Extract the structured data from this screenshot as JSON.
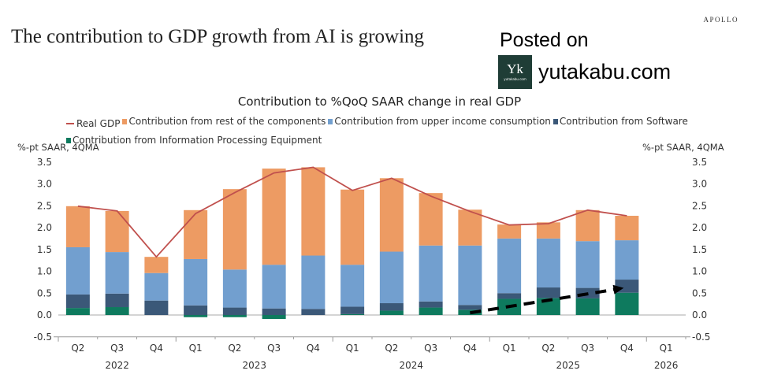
{
  "brand": "APOLLO",
  "headline": "The contribution to GDP growth from AI is growing",
  "watermark": {
    "posted_label": "Posted on",
    "site": "yutakabu.com",
    "logo_mark": "Yk",
    "logo_small": "yutakabu.com",
    "logo_bg": "#1f3d36"
  },
  "chart_data": {
    "type": "bar",
    "stacked": true,
    "title": "Contribution to %QoQ SAAR change in real GDP",
    "ylabel_left": "%-pt SAAR, 4QMA",
    "ylabel_right": "%-pt SAAR, 4QMA",
    "ylim": [
      -0.5,
      3.5
    ],
    "yticks": [
      "3.5",
      "3.0",
      "2.5",
      "2.0",
      "1.5",
      "1.0",
      "0.5",
      "0.0",
      "-0.5"
    ],
    "ytick_values": [
      3.5,
      3.0,
      2.5,
      2.0,
      1.5,
      1.0,
      0.5,
      0.0,
      -0.5
    ],
    "categories": [
      "Q2",
      "Q3",
      "Q4",
      "Q1",
      "Q2",
      "Q3",
      "Q4",
      "Q1",
      "Q2",
      "Q3",
      "Q4",
      "Q1",
      "Q2",
      "Q3",
      "Q4",
      "Q1"
    ],
    "years": [
      {
        "label": "2022",
        "start": 0,
        "end": 2
      },
      {
        "label": "2023",
        "start": 3,
        "end": 6
      },
      {
        "label": "2024",
        "start": 7,
        "end": 10
      },
      {
        "label": "2025",
        "start": 11,
        "end": 14
      },
      {
        "label": "2026",
        "start": 15,
        "end": 15
      }
    ],
    "legend_position": "top",
    "grid": false,
    "series": [
      {
        "name": "Contribution from Information Processing Equipment",
        "kind": "bar",
        "color": "#0e7a5e",
        "values": [
          0.16,
          0.18,
          0.0,
          -0.05,
          -0.05,
          -0.09,
          0.0,
          0.02,
          0.1,
          0.17,
          0.12,
          0.37,
          0.39,
          0.38,
          0.51,
          null
        ]
      },
      {
        "name": "Contribution from Software",
        "kind": "bar",
        "color": "#3b5878",
        "values": [
          0.31,
          0.31,
          0.33,
          0.22,
          0.17,
          0.15,
          0.14,
          0.17,
          0.17,
          0.14,
          0.11,
          0.13,
          0.24,
          0.24,
          0.3,
          null
        ]
      },
      {
        "name": "Contribution from upper income consumption",
        "kind": "bar",
        "color": "#729fcf",
        "values": [
          1.08,
          0.95,
          0.63,
          1.06,
          0.87,
          1.0,
          1.22,
          0.96,
          1.18,
          1.28,
          1.36,
          1.25,
          1.12,
          1.07,
          0.9,
          null
        ]
      },
      {
        "name": "Contribution from rest of the components",
        "kind": "bar",
        "color": "#ed9b63",
        "values": [
          0.94,
          0.94,
          0.37,
          1.12,
          1.84,
          2.2,
          2.02,
          1.72,
          1.68,
          1.2,
          0.82,
          0.32,
          0.37,
          0.71,
          0.56,
          null
        ]
      },
      {
        "name": "Real GDP",
        "kind": "line",
        "color": "#c0504d",
        "values": [
          2.49,
          2.38,
          1.33,
          2.32,
          2.8,
          3.25,
          3.38,
          2.85,
          3.13,
          2.72,
          2.37,
          2.06,
          2.09,
          2.4,
          2.27,
          null
        ]
      }
    ],
    "legend_order": [
      "Real GDP",
      "Contribution from rest of the components",
      "Contribution from upper income consumption",
      "Contribution from Software",
      "Contribution from Information Processing Equipment"
    ],
    "annotation": {
      "type": "dashed-arrow",
      "from": {
        "category_index": 10,
        "value": 0.05
      },
      "to": {
        "category_index": 14,
        "value": 0.62
      },
      "color": "#000000",
      "meaning": "rising AI contribution"
    }
  }
}
